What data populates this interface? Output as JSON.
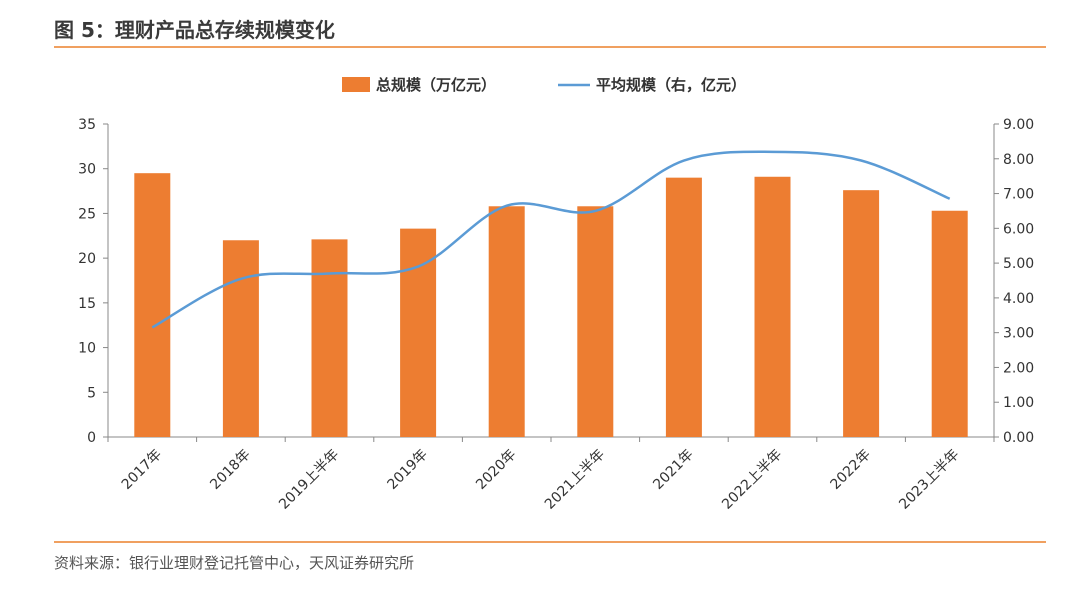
{
  "figure_title": "图 5：理财产品总存续规模变化",
  "source": "资料来源：银行业理财登记托管中心，天风证券研究所",
  "colors": {
    "bar": "#ed7d31",
    "line": "#5b9bd5",
    "accent_rule": "#f0a060",
    "axis": "#888888"
  },
  "chart_data": {
    "type": "bar",
    "title": "",
    "xlabel": "",
    "ylabel": "",
    "categories": [
      "2017年",
      "2018年",
      "2019上半年",
      "2019年",
      "2020年",
      "2021上半年",
      "2021年",
      "2022上半年",
      "2022年",
      "2023上半年"
    ],
    "series": [
      {
        "name": "总规模（万亿元）",
        "type": "bar",
        "axis": "left",
        "values": [
          29.5,
          22.0,
          22.1,
          23.3,
          25.8,
          25.8,
          29.0,
          29.1,
          27.6,
          25.3
        ]
      },
      {
        "name": "平均规模（右，亿元）",
        "type": "line",
        "axis": "right",
        "values": [
          3.15,
          4.55,
          4.7,
          4.9,
          6.65,
          6.5,
          7.95,
          8.2,
          7.95,
          6.85
        ]
      }
    ],
    "ylim_left": [
      0,
      35
    ],
    "yticks_left": [
      "0",
      "5",
      "10",
      "15",
      "20",
      "25",
      "30",
      "35"
    ],
    "ylim_right": [
      0,
      9
    ],
    "yticks_right": [
      "0.00",
      "1.00",
      "2.00",
      "3.00",
      "4.00",
      "5.00",
      "6.00",
      "7.00",
      "8.00",
      "9.00"
    ],
    "grid": false,
    "legend_position": "top-center"
  }
}
